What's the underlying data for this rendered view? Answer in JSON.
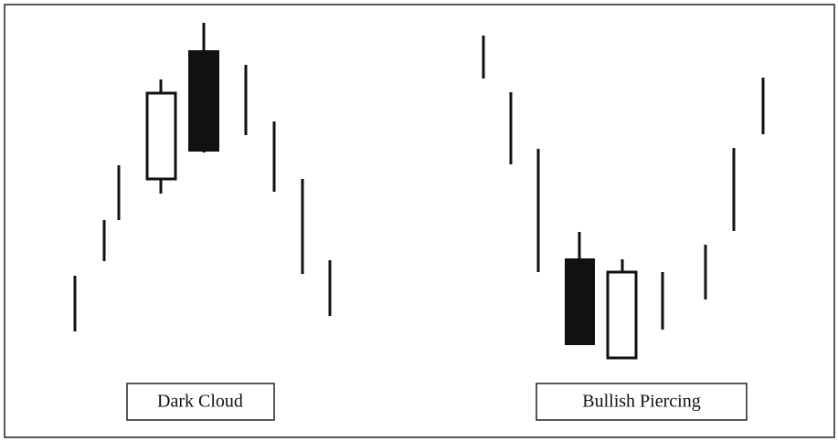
{
  "diagram": {
    "labels": [
      "Dark Cloud",
      "Bullish Piercing"
    ]
  }
}
